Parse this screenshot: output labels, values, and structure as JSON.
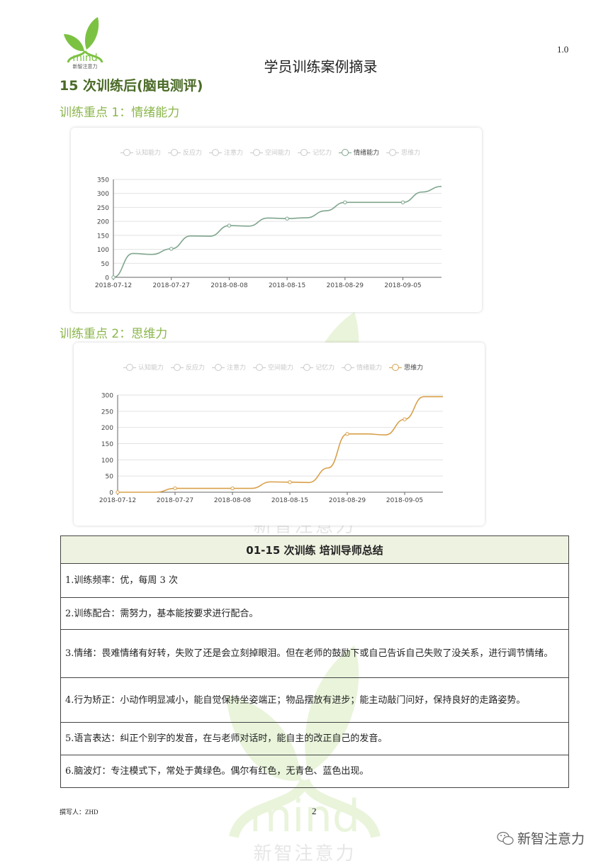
{
  "header": {
    "logo": {
      "word": "mind",
      "brand": "新智注意力"
    },
    "version": "1.0",
    "doc_title": "学员训练案例摘录"
  },
  "section_title": "15 次训练后(脑电测评)",
  "focus1_title": "训练重点 1：情绪能力",
  "focus2_title": "训练重点 2：思维力",
  "legend_items": [
    "认知能力",
    "反应力",
    "注意力",
    "空间能力",
    "记忆力",
    "情绪能力",
    "思维力"
  ],
  "colors": {
    "emotion_line": "#7fa58e",
    "thinking_line": "#d8a04a",
    "heading": "#4a6a26",
    "subheading": "#8ab64a",
    "table_header_bg": "#eef2e0"
  },
  "chart_data": [
    {
      "type": "line",
      "active_legend": "情绪能力",
      "x_tick_labels": [
        "2018-07-12",
        "2018-07-27",
        "2018-08-08",
        "2018-08-15",
        "2018-08-29",
        "2018-09-05"
      ],
      "y_ticks": [
        0,
        50,
        100,
        150,
        200,
        250,
        300,
        350
      ],
      "ylim": [
        0,
        350
      ],
      "grid": true,
      "legend_placement": "top",
      "series": [
        {
          "name": "情绪能力",
          "values": [
            0,
            85,
            82,
            102,
            148,
            147,
            185,
            183,
            212,
            210,
            213,
            238,
            268,
            268,
            268,
            268,
            305,
            325
          ]
        }
      ]
    },
    {
      "type": "line",
      "active_legend": "思维力",
      "x_tick_labels": [
        "2018-07-12",
        "2018-07-27",
        "2018-08-08",
        "2018-08-15",
        "2018-08-29",
        "2018-09-05"
      ],
      "y_ticks": [
        0,
        50,
        100,
        150,
        200,
        250,
        300
      ],
      "ylim": [
        0,
        300
      ],
      "grid": true,
      "legend_placement": "top",
      "series": [
        {
          "name": "思维力",
          "values": [
            0,
            0,
            0,
            12,
            12,
            12,
            12,
            12,
            32,
            31,
            30,
            75,
            180,
            180,
            177,
            225,
            295,
            295
          ]
        }
      ]
    }
  ],
  "summary": {
    "title": "01-15 次训练  培训导师总结",
    "rows": [
      "1.训练频率：优，每周 3 次",
      "2.训练配合：需努力，基本能按要求进行配合。",
      "3.情绪：畏难情绪有好转，失败了还是会立刻掉眼泪。但在老师的鼓励下或自己告诉自己失败了没关系，进行调节情绪。",
      "4.行为矫正：小动作明显减小，能自觉保持坐姿端正；物品摆放有进步；能主动敲门问好，保持良好的走路姿势。",
      "5.语言表达：纠正个别字的发音，在与老师对话时，能自主的改正自己的发音。",
      "6.脑波灯：专注模式下，常处于黄绿色。偶尔有红色，无青色、蓝色出现。"
    ]
  },
  "footer": {
    "author": "撰写人：ZHD",
    "page_number": "2",
    "wechat_account": "新智注意力"
  }
}
